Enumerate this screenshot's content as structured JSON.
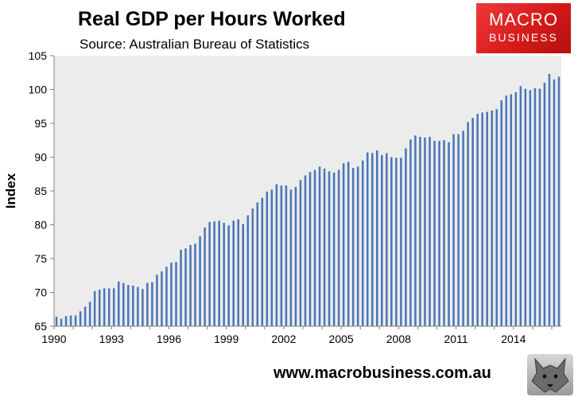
{
  "chart_data": {
    "type": "bar",
    "title": "Real GDP per Hours Worked",
    "subtitle": "Source: Australian Bureau of Statistics",
    "xlabel": "",
    "ylabel": "Index",
    "ylim": [
      65,
      105
    ],
    "yticks": [
      65,
      70,
      75,
      80,
      85,
      90,
      95,
      100,
      105
    ],
    "xticks": [
      "1990",
      "1993",
      "1996",
      "1999",
      "2002",
      "2005",
      "2008",
      "2011",
      "2014"
    ],
    "x_start": "1990-Q1",
    "frequency": "quarterly",
    "grid": false,
    "legend": "none",
    "bar_color": "#4a76b8",
    "values": [
      66.4,
      66.1,
      66.5,
      66.6,
      66.6,
      67.2,
      67.9,
      68.6,
      70.2,
      70.4,
      70.6,
      70.6,
      70.6,
      71.6,
      71.4,
      71.1,
      71.0,
      70.8,
      70.5,
      71.4,
      71.5,
      72.6,
      73.1,
      73.8,
      74.4,
      74.5,
      76.3,
      76.5,
      77.0,
      77.2,
      78.3,
      79.6,
      80.4,
      80.5,
      80.6,
      80.3,
      79.9,
      80.6,
      80.8,
      80.1,
      81.4,
      82.4,
      83.3,
      84.0,
      84.9,
      85.2,
      86.0,
      85.8,
      85.8,
      85.2,
      85.6,
      86.6,
      87.3,
      87.8,
      88.1,
      88.6,
      88.3,
      87.9,
      87.7,
      88.1,
      89.1,
      89.3,
      88.4,
      88.6,
      89.5,
      90.7,
      90.6,
      91.0,
      90.3,
      90.6,
      90.0,
      89.9,
      89.9,
      91.3,
      92.6,
      93.2,
      93.0,
      92.9,
      93.0,
      92.4,
      92.4,
      92.5,
      92.2,
      93.4,
      93.4,
      93.9,
      95.2,
      95.8,
      96.4,
      96.6,
      96.7,
      96.9,
      97.1,
      98.4,
      99.1,
      99.3,
      99.6,
      100.5,
      100.1,
      99.9,
      100.2,
      100.1,
      101.0,
      102.3,
      101.5,
      101.9
    ]
  },
  "website": "www.macrobusiness.com.au",
  "logo": {
    "line1": "MACRO",
    "line2": "BUSINESS"
  }
}
